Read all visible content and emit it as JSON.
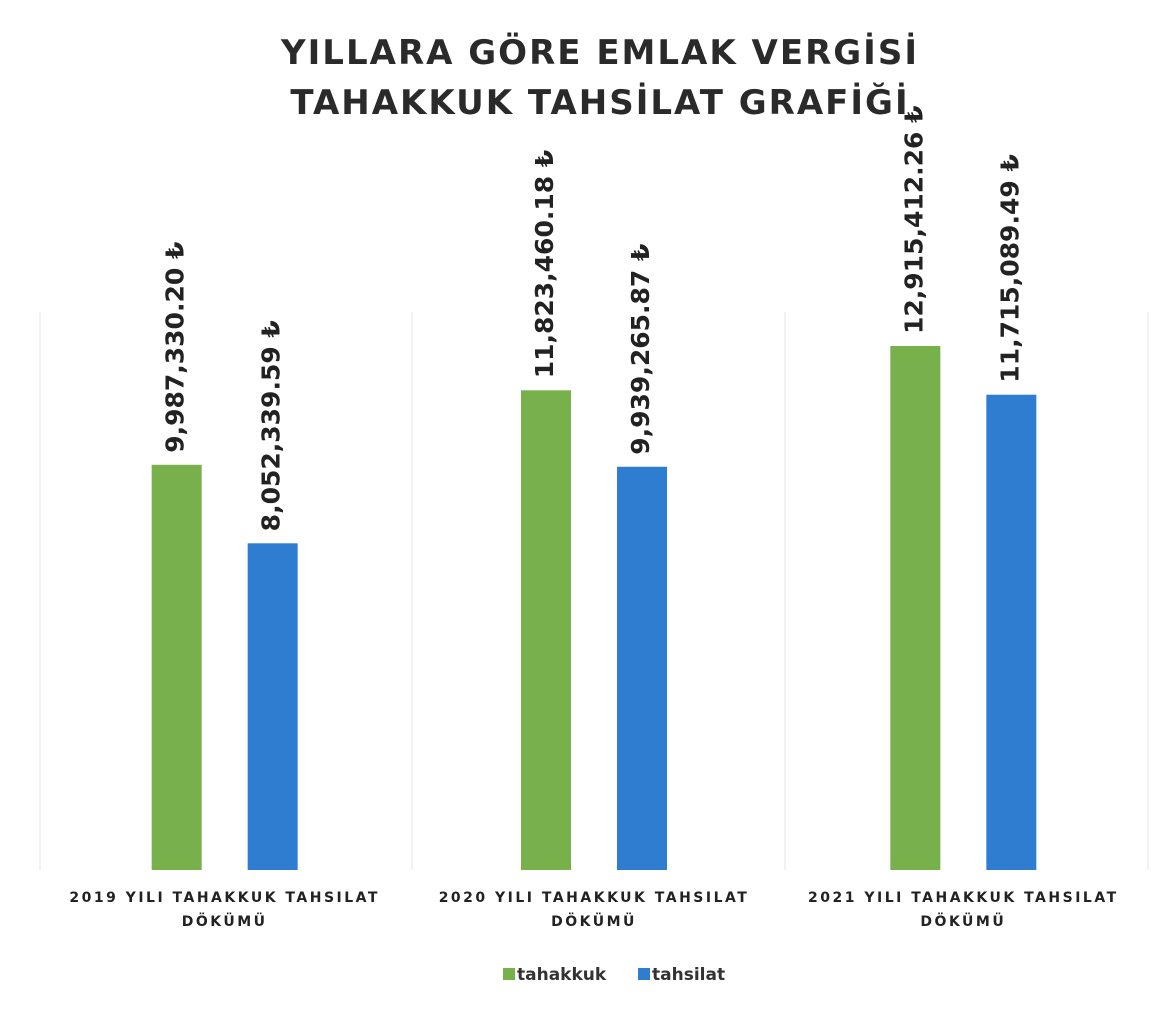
{
  "chart_data": {
    "type": "bar",
    "title": "YILLARA GÖRE EMLAK VERGİSİ TAHAKKUK TAHSİLAT GRAFİĞİ",
    "categories": [
      "2019 YILI TAHAKKUK TAHSILAT DÖKÜMÜ",
      "2020 YILI TAHAKKUK TAHSILAT DÖKÜMÜ",
      "2021 YILI TAHAKKUK TAHSILAT DÖKÜMÜ"
    ],
    "series": [
      {
        "name": "tahakkuk",
        "color": "#78b04c",
        "values": [
          9987330.2,
          11823460.18,
          12915412.26
        ],
        "value_labels": [
          "9,987,330.20 ₺",
          "11,823,460.18 ₺",
          "12,915,412.26 ₺"
        ]
      },
      {
        "name": "tahsilat",
        "color": "#2f7dd1",
        "values": [
          8052339.59,
          9939265.87,
          11715089.49
        ],
        "value_labels": [
          "8,052,339.59 ₺",
          "9,939,265.87 ₺",
          "11,715,089.49 ₺"
        ]
      }
    ],
    "ylim": [
      0,
      14000000
    ]
  }
}
